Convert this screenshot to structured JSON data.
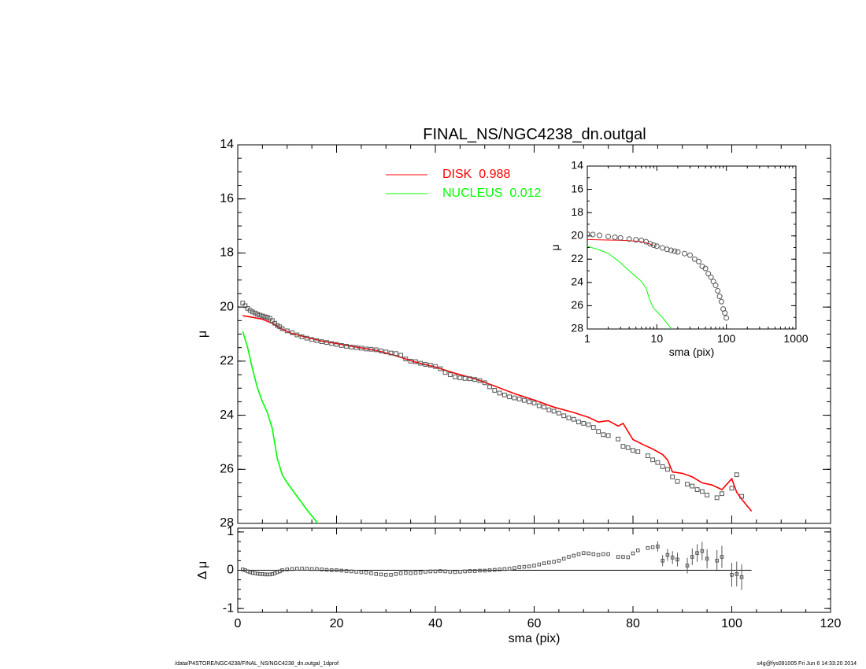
{
  "title": "FINAL_NS/NGC4238_dn.outgal",
  "footer": {
    "left": "/data/P4STORE/NGC4238/FINAL_NS/NGC4238_dn.outgal_1dprof",
    "right": "s4g@fys091005  Fri Jun  6 14:33:20 2014"
  },
  "colors": {
    "disk": "#ff0000",
    "nucleus": "#00ff00",
    "data": "#555555",
    "axes": "#000000"
  },
  "chart_data": [
    {
      "id": "main",
      "type": "line",
      "title": "FINAL_NS/NGC4238_dn.outgal",
      "xlabel": "sma (pix)",
      "ylabel": "μ",
      "xlim": [
        0,
        120
      ],
      "ylim": [
        28,
        14
      ],
      "xticks": [
        "0",
        "20",
        "40",
        "60",
        "80",
        "100",
        "120"
      ],
      "yticks": [
        "14",
        "16",
        "18",
        "20",
        "22",
        "24",
        "26",
        "28"
      ],
      "legend": {
        "placement": "top",
        "entries": [
          {
            "label": "DISK  0.988",
            "color": "#ff0000"
          },
          {
            "label": "NUCLEUS  0.012",
            "color": "#00ff00"
          }
        ]
      },
      "series": [
        {
          "name": "DISK  0.988",
          "style": "line",
          "color": "#ff0000",
          "x": [
            1,
            3,
            5,
            7,
            9,
            11,
            14,
            17,
            20,
            24,
            28,
            32,
            36,
            40,
            44,
            48,
            52,
            56,
            60,
            64,
            68,
            71,
            73,
            75,
            77,
            78,
            80,
            82,
            84,
            86,
            87,
            88,
            90,
            92,
            94,
            96,
            98,
            100,
            101,
            102,
            104
          ],
          "y": [
            20.32,
            20.38,
            20.45,
            20.6,
            20.82,
            20.98,
            21.12,
            21.26,
            21.35,
            21.48,
            21.6,
            21.8,
            22.04,
            22.22,
            22.45,
            22.65,
            22.92,
            23.2,
            23.44,
            23.7,
            23.9,
            24.08,
            24.25,
            24.2,
            24.4,
            24.3,
            24.9,
            25.08,
            25.25,
            25.45,
            25.65,
            26.1,
            26.15,
            26.28,
            26.5,
            26.58,
            26.75,
            26.35,
            26.85,
            27.1,
            27.55
          ]
        },
        {
          "name": "NUCLEUS  0.012",
          "style": "line",
          "color": "#00ff00",
          "x": [
            1,
            2,
            3,
            4,
            5,
            6,
            7,
            8,
            9,
            10,
            12,
            14,
            16,
            17
          ],
          "y": [
            20.9,
            21.5,
            22.3,
            23.0,
            23.5,
            23.9,
            24.5,
            25.6,
            26.2,
            26.5,
            27.0,
            27.5,
            27.95,
            28.2
          ]
        },
        {
          "style": "markers",
          "color": "#555555",
          "x": [
            1,
            1.5,
            2,
            2.5,
            3,
            3.5,
            4,
            4.5,
            5,
            5.5,
            6,
            6.5,
            7,
            7.5,
            8,
            8.5,
            9,
            10,
            11,
            12,
            13,
            14,
            15,
            16,
            17,
            18,
            19,
            20,
            21,
            22,
            23,
            24,
            25,
            26,
            27,
            28,
            29,
            30,
            31,
            32,
            33,
            34,
            35,
            36,
            37,
            38,
            39,
            40,
            41,
            42,
            43,
            44,
            45,
            46,
            47,
            48,
            49,
            50,
            51,
            52,
            53,
            54,
            55,
            56,
            57,
            58,
            59,
            60,
            61,
            62,
            63,
            64,
            65,
            66,
            67,
            68,
            69,
            70,
            71,
            72,
            73,
            74,
            75,
            77,
            78,
            79,
            80,
            81,
            83,
            84,
            85,
            86,
            87,
            88,
            89,
            91,
            92,
            93,
            94,
            95,
            97,
            98,
            100,
            101,
            102
          ],
          "y": [
            19.85,
            19.95,
            20.05,
            20.12,
            20.18,
            20.22,
            20.27,
            20.3,
            20.33,
            20.36,
            20.38,
            20.42,
            20.5,
            20.6,
            20.68,
            20.73,
            20.8,
            20.88,
            20.95,
            21.03,
            21.1,
            21.15,
            21.2,
            21.24,
            21.28,
            21.31,
            21.35,
            21.38,
            21.42,
            21.45,
            21.48,
            21.5,
            21.52,
            21.55,
            21.56,
            21.58,
            21.62,
            21.66,
            21.7,
            21.72,
            21.78,
            21.92,
            22.0,
            22.02,
            22.08,
            22.12,
            22.15,
            22.2,
            22.28,
            22.42,
            22.5,
            22.58,
            22.62,
            22.64,
            22.65,
            22.68,
            22.72,
            22.8,
            22.95,
            23.08,
            23.18,
            23.25,
            23.32,
            23.36,
            23.4,
            23.45,
            23.5,
            23.55,
            23.65,
            23.7,
            23.8,
            23.85,
            23.92,
            24.02,
            24.1,
            24.15,
            24.25,
            24.3,
            24.35,
            24.45,
            24.6,
            24.72,
            24.75,
            24.88,
            25.15,
            25.2,
            25.3,
            25.35,
            25.5,
            25.65,
            25.75,
            25.9,
            26.0,
            26.28,
            26.45,
            26.55,
            26.62,
            26.75,
            26.82,
            26.95,
            27.05,
            26.9,
            26.7,
            26.2,
            27.0
          ]
        }
      ]
    },
    {
      "id": "residual",
      "type": "scatter",
      "xlabel": "sma (pix)",
      "ylabel": "Δ μ",
      "xlim": [
        0,
        120
      ],
      "ylim": [
        -1.1,
        1.1
      ],
      "xticks": [
        "0",
        "20",
        "40",
        "60",
        "80",
        "100",
        "120"
      ],
      "yticks": [
        "1",
        "0",
        "-1"
      ],
      "reference_line": {
        "y": 0,
        "x": [
          0,
          104
        ]
      },
      "series": [
        {
          "style": "markers",
          "color": "#555555",
          "x": [
            1,
            1.5,
            2,
            2.5,
            3,
            3.5,
            4,
            4.5,
            5,
            5.5,
            6,
            6.5,
            7,
            7.5,
            8,
            8.5,
            9,
            10,
            11,
            12,
            13,
            14,
            15,
            16,
            17,
            18,
            19,
            20,
            21,
            22,
            23,
            24,
            25,
            26,
            27,
            28,
            29,
            30,
            31,
            32,
            33,
            34,
            35,
            36,
            37,
            38,
            39,
            40,
            41,
            42,
            43,
            44,
            45,
            46,
            47,
            48,
            49,
            50,
            51,
            52,
            53,
            54,
            55,
            56,
            57,
            58,
            59,
            60,
            61,
            62,
            63,
            64,
            65,
            66,
            67,
            68,
            69,
            70,
            71,
            72,
            73,
            74,
            75,
            77,
            78,
            79,
            80,
            81,
            83,
            84,
            85,
            86,
            87,
            88,
            89,
            91,
            92,
            93,
            94,
            95,
            97,
            98,
            100,
            101,
            102
          ],
          "y": [
            0.02,
            0.0,
            -0.03,
            -0.05,
            -0.07,
            -0.08,
            -0.09,
            -0.1,
            -0.1,
            -0.11,
            -0.11,
            -0.11,
            -0.1,
            -0.08,
            -0.05,
            -0.03,
            0.0,
            0.02,
            0.03,
            0.04,
            0.04,
            0.04,
            0.03,
            0.03,
            0.02,
            0.01,
            0.0,
            0.0,
            -0.01,
            -0.02,
            -0.03,
            -0.04,
            -0.05,
            -0.06,
            -0.08,
            -0.1,
            -0.11,
            -0.12,
            -0.12,
            -0.1,
            -0.08,
            -0.07,
            -0.08,
            -0.07,
            -0.06,
            -0.04,
            -0.03,
            -0.03,
            -0.02,
            -0.03,
            -0.04,
            -0.05,
            -0.04,
            -0.03,
            -0.02,
            -0.02,
            -0.01,
            -0.01,
            0.0,
            0.01,
            0.02,
            0.03,
            0.04,
            0.06,
            0.08,
            0.09,
            0.1,
            0.12,
            0.15,
            0.18,
            0.2,
            0.22,
            0.25,
            0.3,
            0.35,
            0.38,
            0.42,
            0.45,
            0.44,
            0.42,
            0.4,
            0.42,
            0.42,
            0.35,
            0.35,
            0.34,
            0.44,
            0.52,
            0.58,
            0.6,
            0.62,
            0.25,
            0.4,
            0.33,
            0.28,
            0.12,
            0.35,
            0.45,
            0.5,
            0.3,
            0.25,
            0.35,
            -0.12,
            -0.1,
            -0.18
          ]
        }
      ]
    },
    {
      "id": "inset",
      "type": "line",
      "xlabel": "sma (pix)",
      "ylabel": "μ",
      "xscale": "log",
      "xlim": [
        1,
        1000
      ],
      "ylim": [
        28,
        14
      ],
      "xticks": [
        "1",
        "10",
        "100",
        "1000"
      ],
      "yticks": [
        "14",
        "16",
        "18",
        "20",
        "22",
        "24",
        "26",
        "28"
      ],
      "series": [
        {
          "name": "DISK  0.988",
          "style": "line",
          "color": "#ff0000",
          "x": [
            1,
            1.5,
            2,
            3,
            4,
            5,
            6,
            7,
            8,
            9
          ],
          "y": [
            20.32,
            20.34,
            20.36,
            20.38,
            20.42,
            20.45,
            20.5,
            20.58,
            20.7,
            20.82
          ]
        },
        {
          "name": "NUCLEUS  0.012",
          "style": "line",
          "color": "#00ff00",
          "x": [
            1,
            1.5,
            2,
            3,
            4,
            5,
            6,
            7,
            8,
            9,
            10,
            12,
            14,
            16,
            17
          ],
          "y": [
            20.9,
            21.2,
            21.5,
            22.3,
            23.0,
            23.5,
            23.9,
            24.5,
            25.6,
            26.2,
            26.5,
            27.0,
            27.5,
            27.95,
            28.2
          ]
        },
        {
          "style": "markers",
          "color": "#555555",
          "x": [
            1,
            1.2,
            1.5,
            2,
            2.5,
            3,
            4,
            5,
            6,
            7,
            8,
            9,
            10,
            12,
            14,
            16,
            18,
            20,
            25,
            30,
            35,
            40,
            45,
            50,
            55,
            60,
            65,
            70,
            75,
            80,
            85,
            90,
            95,
            100
          ],
          "y": [
            19.85,
            19.88,
            19.95,
            20.05,
            20.12,
            20.18,
            20.27,
            20.33,
            20.38,
            20.5,
            20.68,
            20.8,
            20.88,
            21.03,
            21.15,
            21.24,
            21.31,
            21.38,
            21.52,
            21.66,
            22.0,
            22.2,
            22.62,
            22.8,
            23.25,
            23.55,
            23.92,
            24.25,
            24.72,
            25.2,
            25.65,
            26.28,
            26.62,
            27.05
          ]
        }
      ]
    }
  ]
}
